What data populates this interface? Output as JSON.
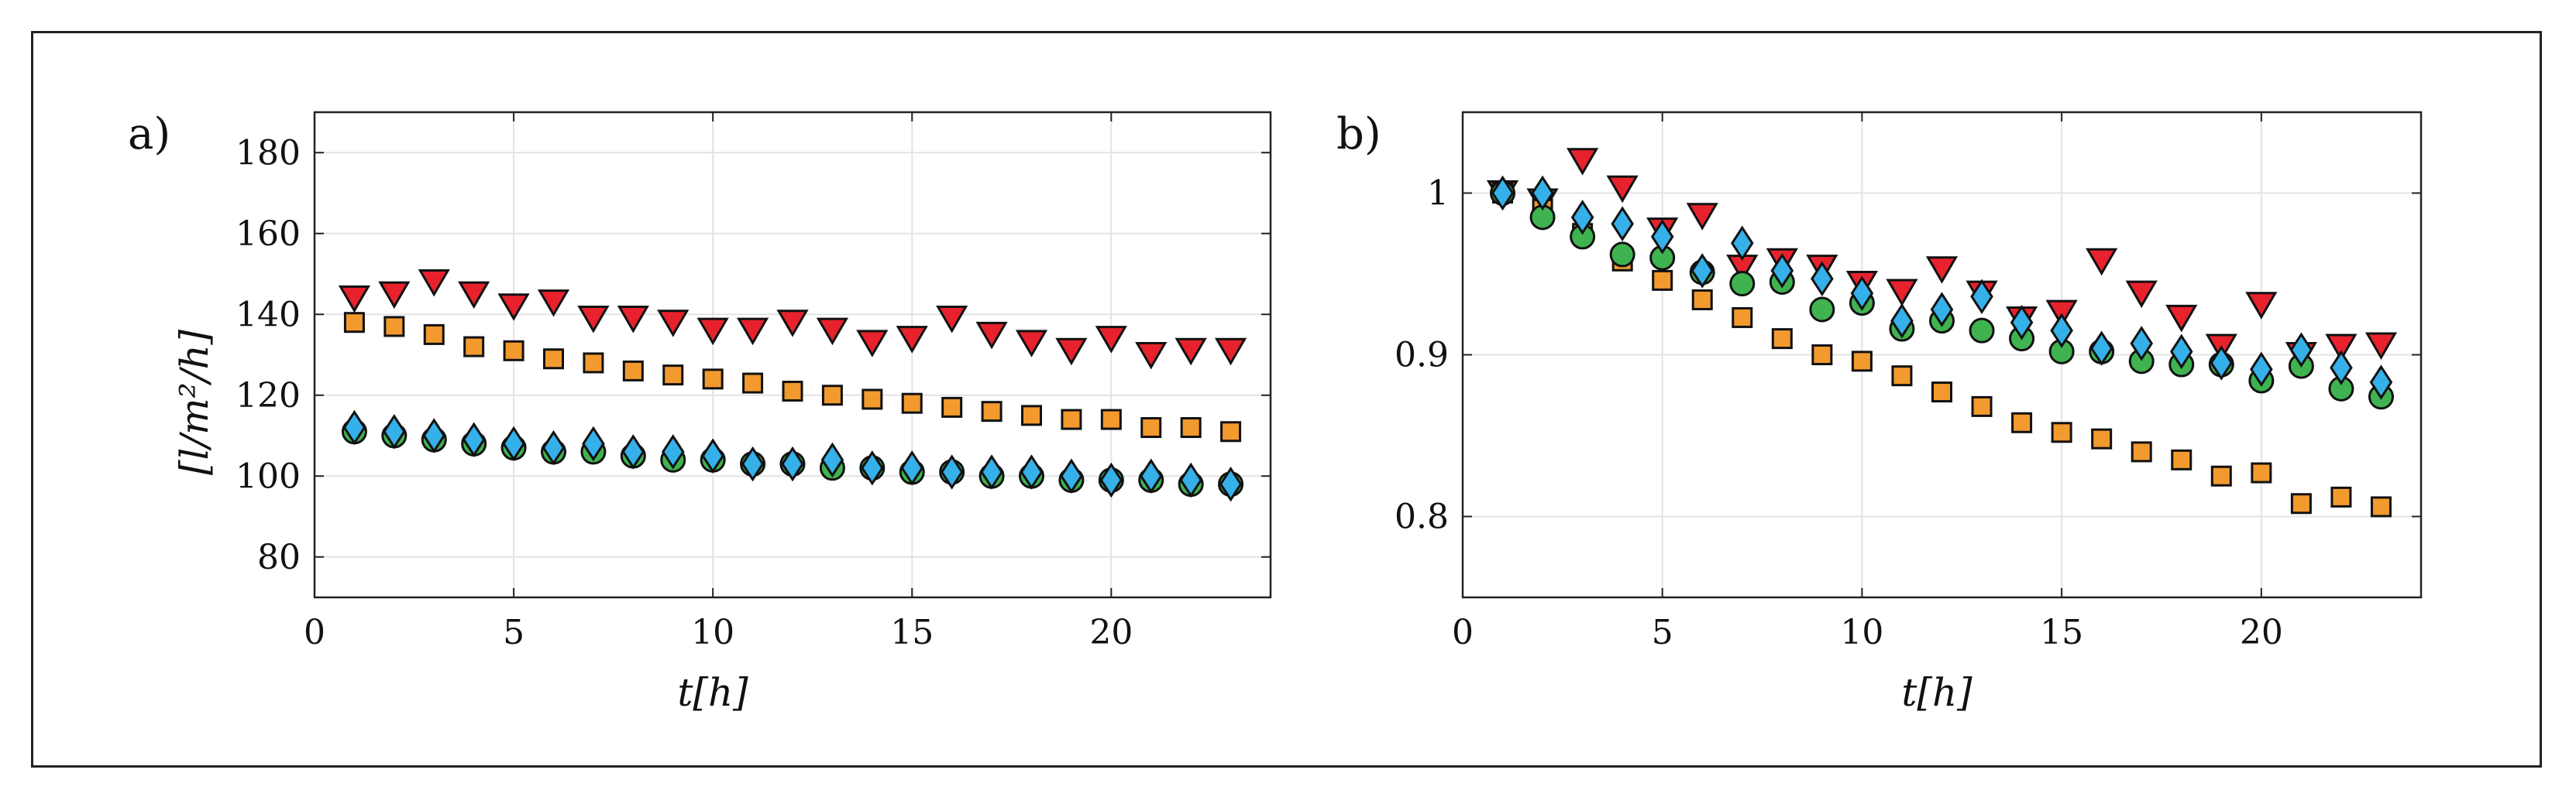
{
  "colors": {
    "square": "#f39a2e",
    "triangle": "#e8222d",
    "circle": "#3fb34f",
    "diamond": "#35b0e8",
    "edge": "#111111",
    "grid": "#e3e3e3"
  },
  "chart_data": [
    {
      "type": "scatter",
      "panel_label": "a)",
      "xlabel": "t[h]",
      "ylabel": "[l/m²/h]",
      "xlim": [
        0,
        24
      ],
      "ylim": [
        70,
        190
      ],
      "xticks": [
        0,
        5,
        10,
        15,
        20
      ],
      "yticks": [
        80,
        100,
        120,
        140,
        160,
        180
      ],
      "grid": true,
      "x": [
        1,
        2,
        3,
        4,
        5,
        6,
        7,
        8,
        9,
        10,
        11,
        12,
        13,
        14,
        15,
        16,
        17,
        18,
        19,
        20,
        21,
        22,
        23
      ],
      "series": [
        {
          "name": "triangle",
          "marker": "v",
          "color": "#e8222d",
          "values": [
            144,
            145,
            148,
            145,
            142,
            143,
            139,
            139,
            138,
            136,
            136,
            138,
            136,
            133,
            134,
            139,
            135,
            133,
            131,
            134,
            130,
            131,
            131
          ]
        },
        {
          "name": "square",
          "marker": "s",
          "color": "#f39a2e",
          "values": [
            138,
            137,
            135,
            132,
            131,
            129,
            128,
            126,
            125,
            124,
            123,
            121,
            120,
            119,
            118,
            117,
            116,
            115,
            114,
            114,
            112,
            112,
            111
          ]
        },
        {
          "name": "circle",
          "marker": "o",
          "color": "#3fb34f",
          "values": [
            111,
            110,
            109,
            108,
            107,
            106,
            106,
            105,
            104,
            104,
            103,
            103,
            102,
            102,
            101,
            101,
            100,
            100,
            99,
            99,
            99,
            98,
            98
          ]
        },
        {
          "name": "diamond",
          "marker": "d",
          "color": "#35b0e8",
          "values": [
            112,
            111,
            110,
            109,
            108,
            107,
            108,
            106,
            106,
            105,
            103,
            103,
            104,
            102,
            102,
            101,
            101,
            101,
            100,
            99,
            100,
            99,
            98
          ]
        }
      ]
    },
    {
      "type": "scatter",
      "panel_label": "b)",
      "xlabel": "t[h]",
      "ylabel": "",
      "xlim": [
        0,
        24
      ],
      "ylim": [
        0.75,
        1.05
      ],
      "xticks": [
        0,
        5,
        10,
        15,
        20
      ],
      "yticks": [
        0.8,
        0.9,
        1
      ],
      "grid": true,
      "x": [
        1,
        2,
        3,
        4,
        5,
        6,
        7,
        8,
        9,
        10,
        11,
        12,
        13,
        14,
        15,
        16,
        17,
        18,
        19,
        20,
        21,
        22,
        23
      ],
      "series": [
        {
          "name": "triangle",
          "marker": "v",
          "color": "#e8222d",
          "values": [
            1.0,
            0.995,
            1.02,
            1.003,
            0.977,
            0.986,
            0.954,
            0.958,
            0.954,
            0.944,
            0.939,
            0.953,
            0.938,
            0.922,
            0.926,
            0.958,
            0.938,
            0.923,
            0.905,
            0.931,
            0.9,
            0.905,
            0.906
          ]
        },
        {
          "name": "square",
          "marker": "s",
          "color": "#f39a2e",
          "values": [
            1.0,
            0.99,
            0.975,
            0.958,
            0.946,
            0.934,
            0.923,
            0.91,
            0.9,
            0.896,
            0.887,
            0.877,
            0.868,
            0.858,
            0.852,
            0.848,
            0.84,
            0.835,
            0.825,
            0.827,
            0.808,
            0.812,
            0.806
          ]
        },
        {
          "name": "circle",
          "marker": "o",
          "color": "#3fb34f",
          "values": [
            1.0,
            0.985,
            0.973,
            0.962,
            0.96,
            0.951,
            0.944,
            0.945,
            0.928,
            0.932,
            0.916,
            0.921,
            0.915,
            0.91,
            0.902,
            0.902,
            0.896,
            0.894,
            0.894,
            0.884,
            0.893,
            0.879,
            0.874
          ]
        },
        {
          "name": "diamond",
          "marker": "d",
          "color": "#35b0e8",
          "values": [
            1.0,
            1.0,
            0.985,
            0.981,
            0.973,
            0.952,
            0.969,
            0.952,
            0.947,
            0.938,
            0.921,
            0.928,
            0.936,
            0.92,
            0.915,
            0.904,
            0.907,
            0.902,
            0.895,
            0.891,
            0.903,
            0.892,
            0.883
          ]
        }
      ]
    }
  ]
}
